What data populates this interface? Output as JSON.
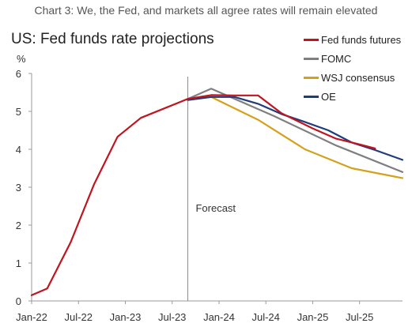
{
  "caption": "Chart 3: We, the Fed, and markets all agree rates will remain elevated",
  "chart_data": {
    "type": "line",
    "title": "US: Fed funds rate projections",
    "ylabel": "%",
    "ylim": [
      0,
      6
    ],
    "yticks": [
      "0",
      "1",
      "2",
      "3",
      "4",
      "5",
      "6"
    ],
    "xticks": [
      {
        "label": "Jan-22",
        "t": 0
      },
      {
        "label": "Jul-22",
        "t": 6
      },
      {
        "label": "Jan-23",
        "t": 12
      },
      {
        "label": "Jul-23",
        "t": 18
      },
      {
        "label": "Jan-24",
        "t": 24
      },
      {
        "label": "Jul-24",
        "t": 30
      },
      {
        "label": "Jan-25",
        "t": 36
      },
      {
        "label": "Jul-25",
        "t": 42
      }
    ],
    "xrange": [
      0,
      47.5
    ],
    "forecast_t": 20,
    "annotation": "Forecast",
    "series": [
      {
        "name": "Fed funds futures",
        "color": "#c0141e",
        "points": [
          [
            0,
            0.15
          ],
          [
            2,
            0.33
          ],
          [
            5,
            1.55
          ],
          [
            8,
            3.08
          ],
          [
            11,
            4.33
          ],
          [
            14,
            4.83
          ],
          [
            20,
            5.33
          ],
          [
            23,
            5.43
          ],
          [
            26,
            5.42
          ],
          [
            29,
            5.42
          ],
          [
            32,
            4.95
          ],
          [
            36,
            4.55
          ],
          [
            39,
            4.28
          ],
          [
            42,
            4.13
          ],
          [
            44,
            4.02
          ]
        ]
      },
      {
        "name": "FOMC",
        "color": "#7f7f7f",
        "points": [
          [
            20,
            5.33
          ],
          [
            23,
            5.6
          ],
          [
            31,
            4.88
          ],
          [
            39,
            4.1
          ],
          [
            47.5,
            3.4
          ]
        ]
      },
      {
        "name": "WSJ consensus",
        "color": "#d4a21a",
        "points": [
          [
            20,
            5.33
          ],
          [
            23,
            5.38
          ],
          [
            29,
            4.78
          ],
          [
            35,
            4.0
          ],
          [
            41,
            3.5
          ],
          [
            47.5,
            3.24
          ]
        ]
      },
      {
        "name": "OE",
        "color": "#1f3d7a",
        "points": [
          [
            20,
            5.3
          ],
          [
            23,
            5.38
          ],
          [
            26,
            5.38
          ],
          [
            29,
            5.2
          ],
          [
            32,
            4.93
          ],
          [
            35,
            4.72
          ],
          [
            38,
            4.5
          ],
          [
            41,
            4.18
          ],
          [
            44,
            3.98
          ],
          [
            47.5,
            3.72
          ]
        ]
      }
    ]
  }
}
